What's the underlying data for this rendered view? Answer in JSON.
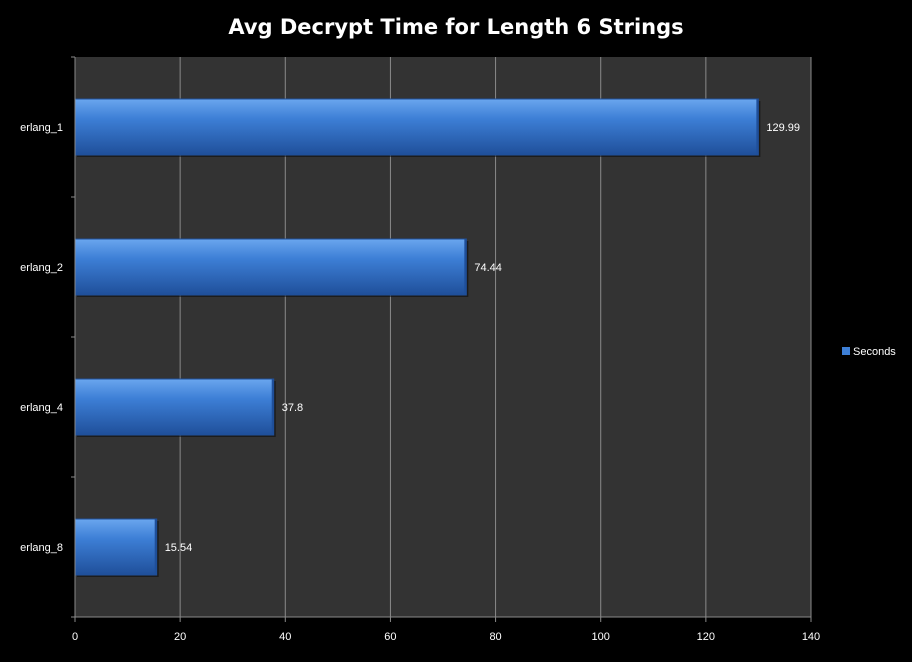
{
  "chart_data": {
    "type": "bar",
    "orientation": "horizontal",
    "title": "Avg Decrypt Time for Length 6 Strings",
    "xlabel": "",
    "ylabel": "",
    "categories": [
      "erlang_1",
      "erlang_2",
      "erlang_4",
      "erlang_8"
    ],
    "series": [
      {
        "name": "Seconds",
        "values": [
          129.99,
          74.44,
          37.8,
          15.54
        ]
      }
    ],
    "xlim": [
      0,
      140
    ],
    "x_ticks": [
      0,
      20,
      40,
      60,
      80,
      100,
      120,
      140
    ],
    "x_tick_labels": [
      "0",
      "20",
      "40",
      "60",
      "80",
      "100",
      "120",
      "140"
    ],
    "data_labels": [
      "129.99",
      "74.44",
      "37.8",
      "15.54"
    ],
    "grid": "vertical major gridlines",
    "legend": "right",
    "colors": {
      "background": "#000000",
      "plot_area": "#333333",
      "bar": "#3d7fd6",
      "bar_light": "#6aa6ee",
      "bar_dark": "#1f4f9a",
      "grid": "#8a8a8a",
      "text": "#ffffff"
    }
  }
}
